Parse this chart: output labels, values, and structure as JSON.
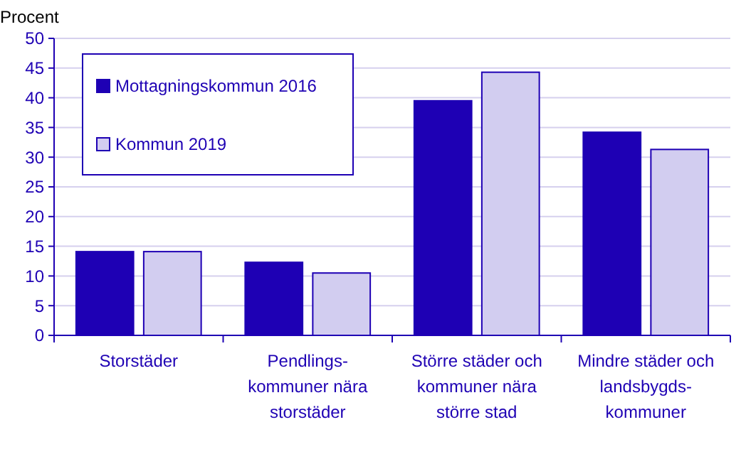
{
  "chart_data": {
    "type": "bar",
    "ylabel": "Procent",
    "categories": [
      "Storstäder",
      "Pendlings-\nkommuner nära\nstorstäder",
      "Större städer och\nkommuner nära\nstörre stad",
      "Mindre städer och\nlandsbygds-\nkommuner"
    ],
    "series": [
      {
        "name": "Mottagningskommun 2016",
        "color": "#1e00b4",
        "values": [
          14.1,
          12.3,
          39.5,
          34.2
        ]
      },
      {
        "name": "Kommun 2019",
        "color": "#d2cdf0",
        "values": [
          14.1,
          10.5,
          44.3,
          31.3
        ]
      }
    ],
    "ylim": [
      0,
      50
    ],
    "yticks": [
      0,
      5,
      10,
      15,
      20,
      25,
      30,
      35,
      40,
      45,
      50
    ],
    "grid": "y",
    "legend": "top left"
  }
}
